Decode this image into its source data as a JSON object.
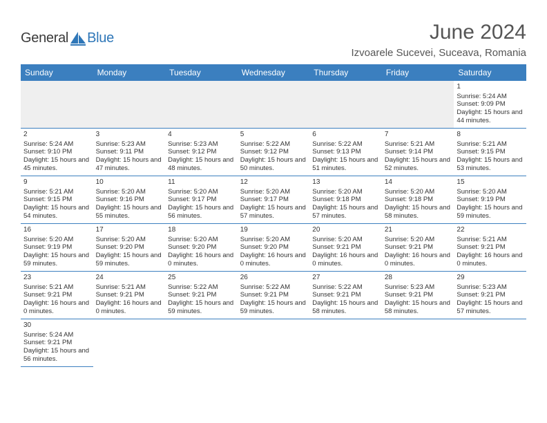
{
  "logo": {
    "text_left": "General",
    "text_right": "Blue",
    "brand_color": "#2f77b8"
  },
  "header": {
    "month_title": "June 2024",
    "location": "Izvoarele Sucevei, Suceava, Romania"
  },
  "calendar": {
    "header_bg": "#3b7fbf",
    "header_fg": "#ffffff",
    "cell_border": "#3b7fbf",
    "blank_bg": "#efefef",
    "day_names": [
      "Sunday",
      "Monday",
      "Tuesday",
      "Wednesday",
      "Thursday",
      "Friday",
      "Saturday"
    ],
    "leading_blanks": 6,
    "days": [
      {
        "n": "1",
        "sunrise": "5:24 AM",
        "sunset": "9:09 PM",
        "daylight": "15 hours and 44 minutes."
      },
      {
        "n": "2",
        "sunrise": "5:24 AM",
        "sunset": "9:10 PM",
        "daylight": "15 hours and 45 minutes."
      },
      {
        "n": "3",
        "sunrise": "5:23 AM",
        "sunset": "9:11 PM",
        "daylight": "15 hours and 47 minutes."
      },
      {
        "n": "4",
        "sunrise": "5:23 AM",
        "sunset": "9:12 PM",
        "daylight": "15 hours and 48 minutes."
      },
      {
        "n": "5",
        "sunrise": "5:22 AM",
        "sunset": "9:12 PM",
        "daylight": "15 hours and 50 minutes."
      },
      {
        "n": "6",
        "sunrise": "5:22 AM",
        "sunset": "9:13 PM",
        "daylight": "15 hours and 51 minutes."
      },
      {
        "n": "7",
        "sunrise": "5:21 AM",
        "sunset": "9:14 PM",
        "daylight": "15 hours and 52 minutes."
      },
      {
        "n": "8",
        "sunrise": "5:21 AM",
        "sunset": "9:15 PM",
        "daylight": "15 hours and 53 minutes."
      },
      {
        "n": "9",
        "sunrise": "5:21 AM",
        "sunset": "9:15 PM",
        "daylight": "15 hours and 54 minutes."
      },
      {
        "n": "10",
        "sunrise": "5:20 AM",
        "sunset": "9:16 PM",
        "daylight": "15 hours and 55 minutes."
      },
      {
        "n": "11",
        "sunrise": "5:20 AM",
        "sunset": "9:17 PM",
        "daylight": "15 hours and 56 minutes."
      },
      {
        "n": "12",
        "sunrise": "5:20 AM",
        "sunset": "9:17 PM",
        "daylight": "15 hours and 57 minutes."
      },
      {
        "n": "13",
        "sunrise": "5:20 AM",
        "sunset": "9:18 PM",
        "daylight": "15 hours and 57 minutes."
      },
      {
        "n": "14",
        "sunrise": "5:20 AM",
        "sunset": "9:18 PM",
        "daylight": "15 hours and 58 minutes."
      },
      {
        "n": "15",
        "sunrise": "5:20 AM",
        "sunset": "9:19 PM",
        "daylight": "15 hours and 59 minutes."
      },
      {
        "n": "16",
        "sunrise": "5:20 AM",
        "sunset": "9:19 PM",
        "daylight": "15 hours and 59 minutes."
      },
      {
        "n": "17",
        "sunrise": "5:20 AM",
        "sunset": "9:20 PM",
        "daylight": "15 hours and 59 minutes."
      },
      {
        "n": "18",
        "sunrise": "5:20 AM",
        "sunset": "9:20 PM",
        "daylight": "16 hours and 0 minutes."
      },
      {
        "n": "19",
        "sunrise": "5:20 AM",
        "sunset": "9:20 PM",
        "daylight": "16 hours and 0 minutes."
      },
      {
        "n": "20",
        "sunrise": "5:20 AM",
        "sunset": "9:21 PM",
        "daylight": "16 hours and 0 minutes."
      },
      {
        "n": "21",
        "sunrise": "5:20 AM",
        "sunset": "9:21 PM",
        "daylight": "16 hours and 0 minutes."
      },
      {
        "n": "22",
        "sunrise": "5:21 AM",
        "sunset": "9:21 PM",
        "daylight": "16 hours and 0 minutes."
      },
      {
        "n": "23",
        "sunrise": "5:21 AM",
        "sunset": "9:21 PM",
        "daylight": "16 hours and 0 minutes."
      },
      {
        "n": "24",
        "sunrise": "5:21 AM",
        "sunset": "9:21 PM",
        "daylight": "16 hours and 0 minutes."
      },
      {
        "n": "25",
        "sunrise": "5:22 AM",
        "sunset": "9:21 PM",
        "daylight": "15 hours and 59 minutes."
      },
      {
        "n": "26",
        "sunrise": "5:22 AM",
        "sunset": "9:21 PM",
        "daylight": "15 hours and 59 minutes."
      },
      {
        "n": "27",
        "sunrise": "5:22 AM",
        "sunset": "9:21 PM",
        "daylight": "15 hours and 58 minutes."
      },
      {
        "n": "28",
        "sunrise": "5:23 AM",
        "sunset": "9:21 PM",
        "daylight": "15 hours and 58 minutes."
      },
      {
        "n": "29",
        "sunrise": "5:23 AM",
        "sunset": "9:21 PM",
        "daylight": "15 hours and 57 minutes."
      },
      {
        "n": "30",
        "sunrise": "5:24 AM",
        "sunset": "9:21 PM",
        "daylight": "15 hours and 56 minutes."
      }
    ],
    "labels": {
      "sunrise": "Sunrise:",
      "sunset": "Sunset:",
      "daylight": "Daylight:"
    }
  }
}
